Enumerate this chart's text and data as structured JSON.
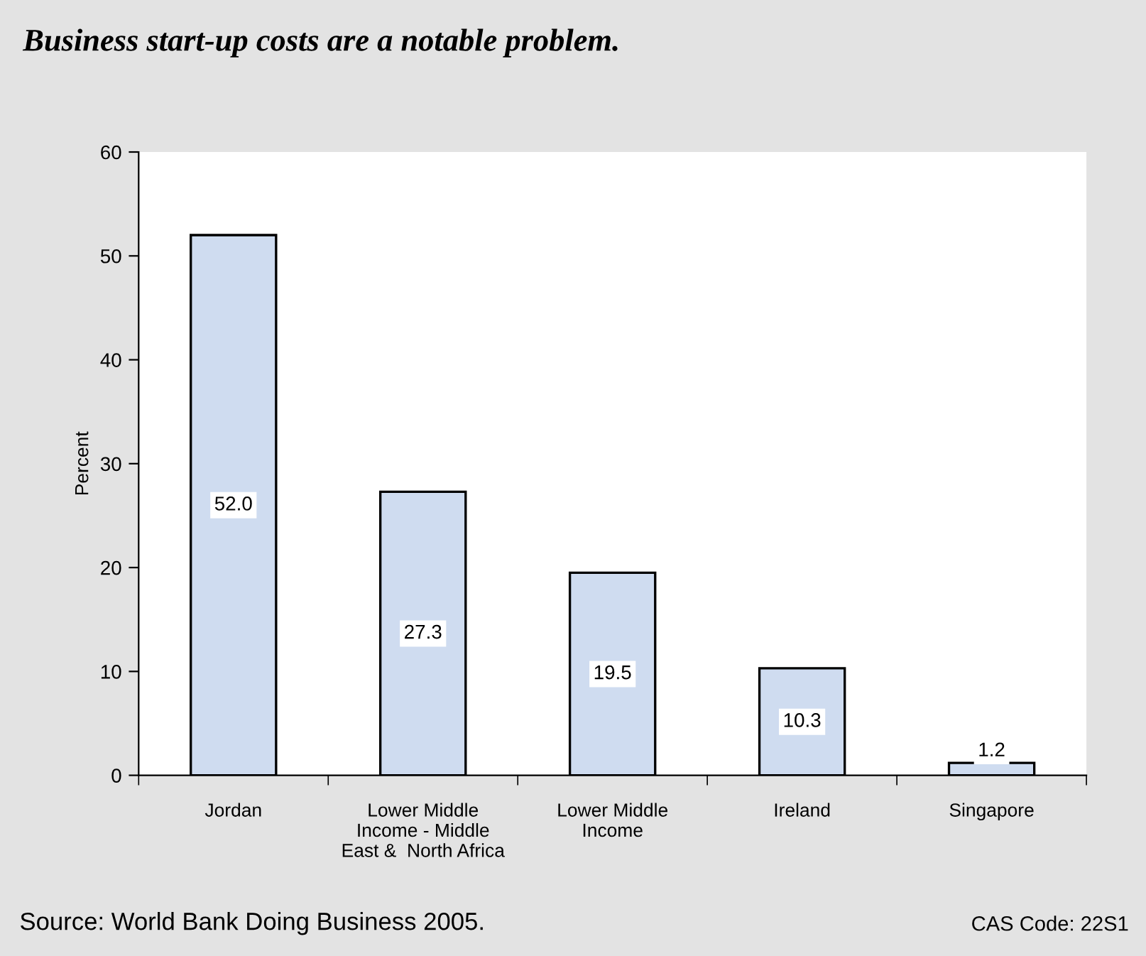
{
  "chart_data": {
    "type": "bar",
    "title": "Business start-up costs are a notable problem.",
    "ylabel": "Percent",
    "categories": [
      "Jordan",
      "Lower Middle\nIncome - Middle\nEast &  North Africa",
      "Lower Middle\nIncome",
      "Ireland",
      "Singapore"
    ],
    "values": [
      52.0,
      27.3,
      19.5,
      10.3,
      1.2
    ],
    "value_labels": [
      "52.0",
      "27.3",
      "19.5",
      "10.3",
      "1.2"
    ],
    "color": "#cfdcf0",
    "ylim": [
      0,
      60
    ],
    "yticks": [
      0,
      10,
      20,
      30,
      40,
      50,
      60
    ],
    "grid": false,
    "annotations": [
      "Source: World Bank Doing Business 2005.",
      "CAS Code: 22S1"
    ]
  }
}
